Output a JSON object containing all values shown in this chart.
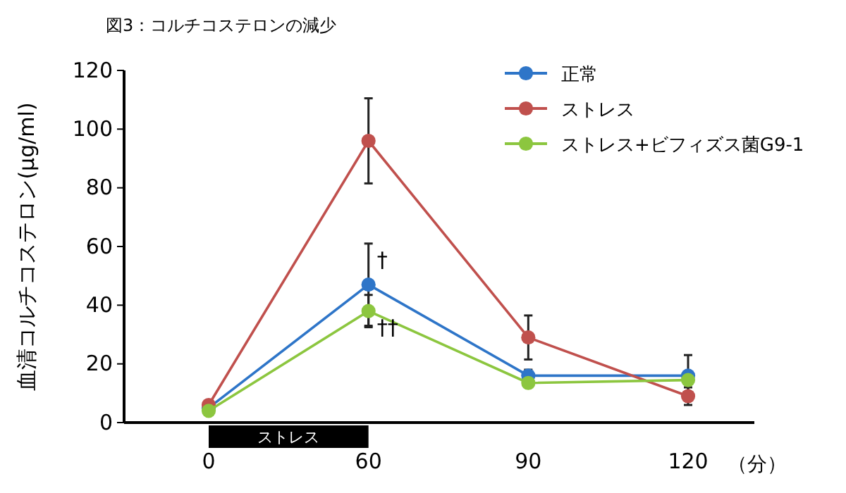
{
  "chart_data": {
    "type": "line",
    "title": "図3：コルチコステロンの減少",
    "ylabel": "血清コルチコステロン(μg/ml)",
    "xlabel": "（分）",
    "categories": [
      "0",
      "60",
      "90",
      "120"
    ],
    "series": [
      {
        "name": "正常",
        "color": "#2e75c8",
        "values": [
          5,
          47,
          16,
          16
        ],
        "errors": [
          null,
          14,
          2,
          7
        ]
      },
      {
        "name": "ストレス",
        "color": "#c0504d",
        "values": [
          6,
          96,
          29,
          9
        ],
        "errors": [
          null,
          14.5,
          7.5,
          3
        ]
      },
      {
        "name": "ストレス+ビフィズス菌G9-1",
        "color": "#8cc63f",
        "values": [
          4,
          38,
          13.5,
          14.5
        ],
        "errors": [
          null,
          5.5,
          null,
          null
        ]
      }
    ],
    "ylim": [
      0,
      120
    ],
    "yticks": [
      0,
      20,
      40,
      60,
      80,
      100,
      120
    ],
    "grid": false,
    "legend": "top right",
    "marker": "circle",
    "line_style": "solid",
    "annotations": [
      {
        "text": "†",
        "x": "60",
        "y": 53
      },
      "††",
      "ストレス"
    ]
  }
}
